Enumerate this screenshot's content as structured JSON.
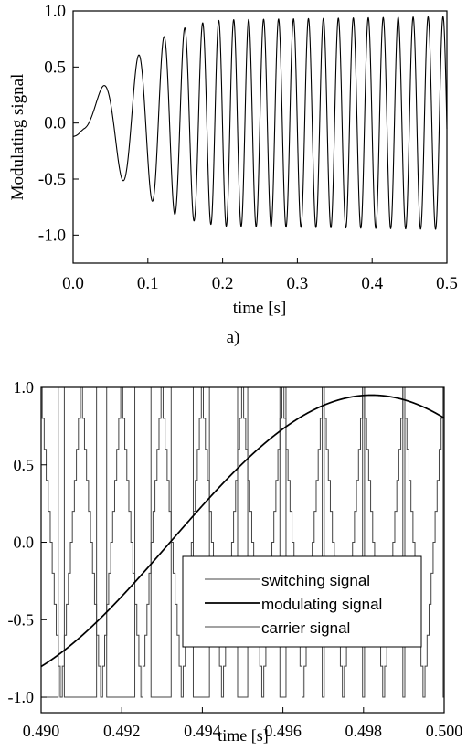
{
  "chart_data": [
    {
      "panel_label": "a)",
      "type": "line",
      "title": "",
      "xlabel": "time [s]",
      "ylabel": "Modulating signal",
      "xlim": [
        0.0,
        0.5
      ],
      "ylim": [
        -1.25,
        1.0
      ],
      "xticks": [
        0.0,
        0.1,
        0.2,
        0.3,
        0.4,
        0.5
      ],
      "xtick_labels": [
        "0.0",
        "0.1",
        "0.2",
        "0.3",
        "0.4",
        "0.5"
      ],
      "yticks": [
        1.0,
        0.5,
        0.0,
        -0.5,
        -1.0
      ],
      "ytick_labels": [
        "1.0",
        "0.5",
        "0.0",
        "-0.5",
        "-1.0"
      ],
      "grid": false,
      "series": [
        {
          "color": "#000000",
          "description_free": true,
          "frequency_hz": 50,
          "start_frequency_hz": 7,
          "ramp_end_s": 0.2,
          "initial_value": -0.12,
          "peaks": [
            {
              "x": 0.04,
              "y": 0.33
            },
            {
              "x": 0.06,
              "y": -0.48
            },
            {
              "x": 0.08,
              "y": 0.58
            },
            {
              "x": 0.1,
              "y": -0.65
            },
            {
              "x": 0.11,
              "y": 0.73
            },
            {
              "x": 0.13,
              "y": -0.8
            },
            {
              "x": 0.15,
              "y": 0.85
            },
            {
              "x": 0.17,
              "y": -0.89
            },
            {
              "x": 0.2,
              "y": 0.92
            },
            {
              "x": 0.5,
              "y": 0.95
            }
          ],
          "steady_amplitude": 0.95,
          "end_value": 0.72
        }
      ]
    },
    {
      "panel_label": "b)",
      "type": "line",
      "title": "",
      "xlabel": "time [s]",
      "ylabel": "",
      "xlim": [
        0.49,
        0.5
      ],
      "ylim": [
        -1.1,
        1.0
      ],
      "xticks": [
        0.49,
        0.492,
        0.494,
        0.496,
        0.498,
        0.5
      ],
      "xtick_labels": [
        "0.490",
        "0.492",
        "0.494",
        "0.496",
        "0.498",
        "0.500"
      ],
      "yticks": [
        1.0,
        0.5,
        0.0,
        -0.5,
        -1.0
      ],
      "ytick_labels": [
        "1.0",
        "0.5",
        "0.0",
        "-0.5",
        "-1.0"
      ],
      "grid": false,
      "legend_position": "bottom-right",
      "carrier_frequency_hz": 1000,
      "carrier_steps_per_half_period": 10,
      "switching_levels": [
        -1.0,
        1.0
      ],
      "series": [
        {
          "name": "switching signal",
          "color": "#444444",
          "stroke": "thin"
        },
        {
          "name": "modulating signal",
          "color": "#000000",
          "stroke": "thick",
          "min": {
            "x": 0.49,
            "y": -0.95
          },
          "max": {
            "x": 0.4982,
            "y": 0.95
          },
          "end": {
            "x": 0.5,
            "y": 0.73
          }
        },
        {
          "name": "carrier signal",
          "color": "#444444",
          "stroke": "thin",
          "min": -1.0,
          "max": 1.0
        }
      ]
    }
  ]
}
